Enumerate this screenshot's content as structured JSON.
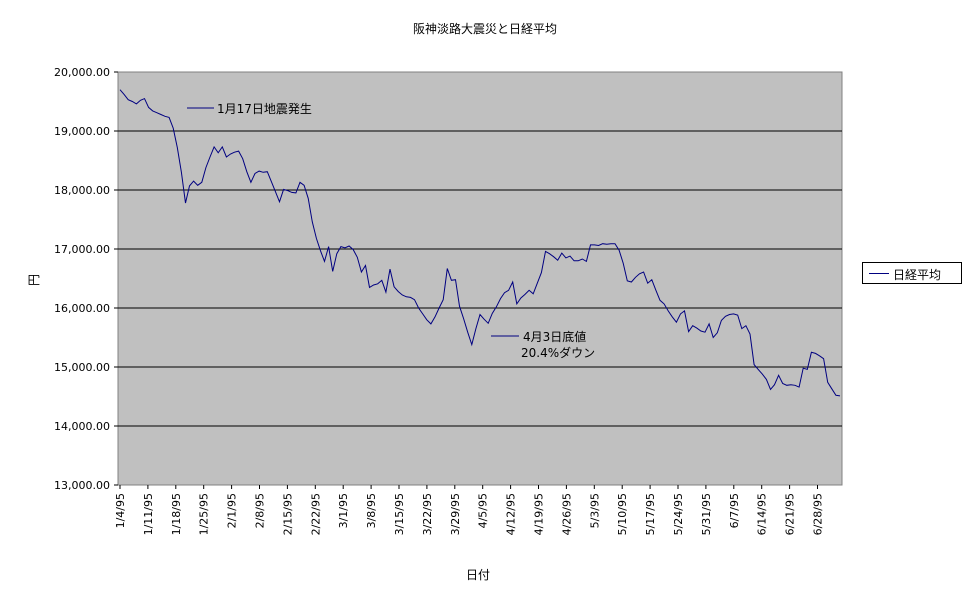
{
  "chart_data": {
    "type": "line",
    "title": "阪神淡路大震災と日経平均",
    "xlabel": "日付",
    "ylabel": "円",
    "ylim": [
      13000,
      20000
    ],
    "yticks": [
      "13,000.00",
      "14,000.00",
      "15,000.00",
      "16,000.00",
      "17,000.00",
      "18,000.00",
      "19,000.00",
      "20,000.00"
    ],
    "xticks": [
      "1/4/95",
      "1/11/95",
      "1/18/95",
      "1/25/95",
      "2/1/95",
      "2/8/95",
      "2/15/95",
      "2/22/95",
      "3/1/95",
      "3/8/95",
      "3/15/95",
      "3/22/95",
      "3/29/95",
      "4/5/95",
      "4/12/95",
      "4/19/95",
      "4/26/95",
      "5/3/95",
      "5/10/95",
      "5/17/95",
      "5/24/95",
      "5/31/95",
      "6/7/95",
      "6/14/95",
      "6/21/95",
      "6/28/95"
    ],
    "legend": "right",
    "grid": true,
    "series": [
      {
        "name": "日経平均",
        "color": "#000080",
        "values": [
          19700,
          19620,
          19530,
          19500,
          19460,
          19520,
          19550,
          19400,
          19340,
          19310,
          19280,
          19250,
          19230,
          19050,
          18720,
          18300,
          17780,
          18070,
          18150,
          18080,
          18130,
          18380,
          18560,
          18730,
          18630,
          18730,
          18560,
          18610,
          18640,
          18660,
          18530,
          18310,
          18130,
          18280,
          18320,
          18300,
          18310,
          18140,
          17970,
          17800,
          18010,
          17990,
          17960,
          17950,
          18130,
          18080,
          17860,
          17460,
          17180,
          16970,
          16790,
          17040,
          16620,
          16920,
          17040,
          17020,
          17050,
          16990,
          16860,
          16610,
          16720,
          16350,
          16390,
          16410,
          16470,
          16270,
          16660,
          16360,
          16280,
          16220,
          16190,
          16180,
          16140,
          16000,
          15900,
          15800,
          15730,
          15850,
          16000,
          16140,
          16670,
          16470,
          16480,
          16030,
          15820,
          15590,
          15380,
          15650,
          15890,
          15810,
          15740,
          15910,
          16020,
          16160,
          16260,
          16300,
          16440,
          16070,
          16170,
          16230,
          16300,
          16240,
          16420,
          16600,
          16960,
          16920,
          16870,
          16810,
          16930,
          16850,
          16880,
          16800,
          16800,
          16830,
          16790,
          17070,
          17070,
          17060,
          17090,
          17080,
          17090,
          17090,
          16980,
          16760,
          16460,
          16440,
          16520,
          16580,
          16610,
          16420,
          16480,
          16300,
          16130,
          16070,
          15950,
          15850,
          15760,
          15900,
          15950,
          15600,
          15700,
          15660,
          15610,
          15590,
          15730,
          15500,
          15580,
          15790,
          15860,
          15890,
          15900,
          15880,
          15650,
          15700,
          15560,
          15040,
          14960,
          14880,
          14790,
          14620,
          14700,
          14860,
          14720,
          14690,
          14700,
          14690,
          14660,
          14980,
          14960,
          15250,
          15230,
          15190,
          15140,
          14740,
          14630,
          14520,
          14510
        ]
      }
    ],
    "annotations": [
      {
        "text": "1月17日地震発生",
        "x": 13,
        "y": 19230
      },
      {
        "text": "4月3日底値",
        "x": 86,
        "y": 15380
      },
      {
        "text": "20.4%ダウン",
        "x": 86,
        "y": 15380
      }
    ]
  }
}
